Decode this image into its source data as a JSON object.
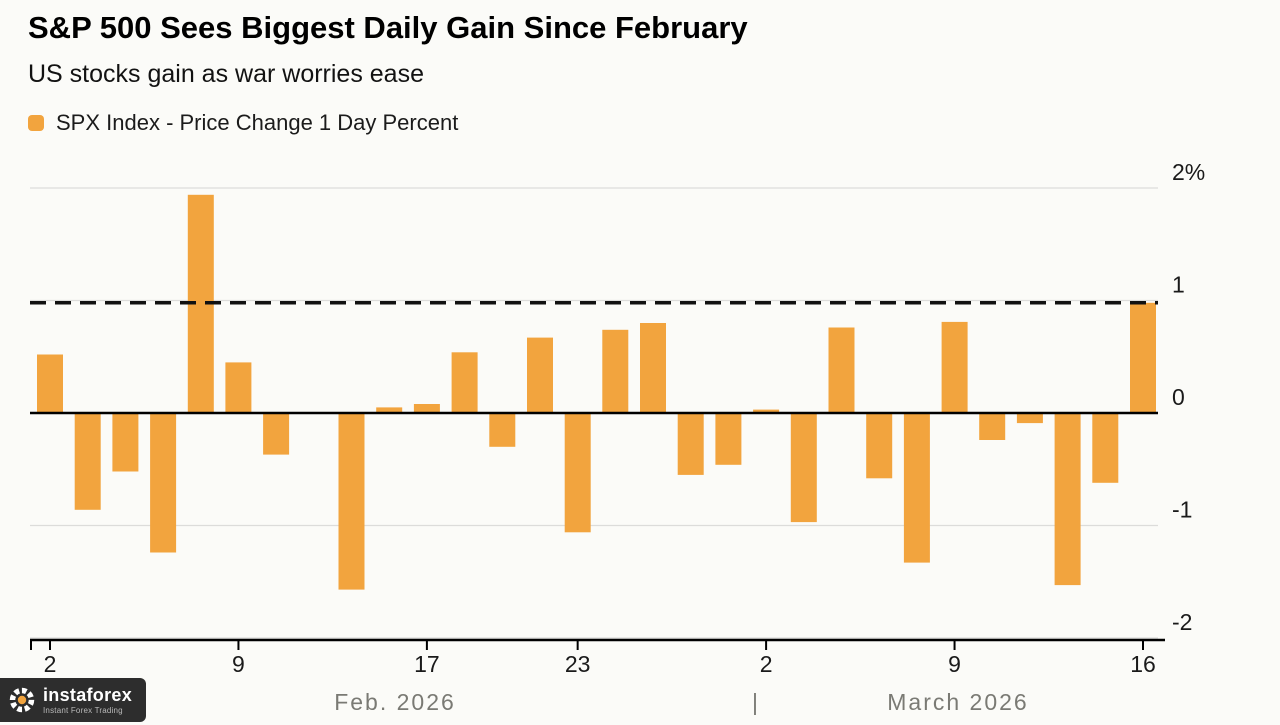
{
  "chart_data": {
    "type": "bar",
    "title": "S&P 500 Sees Biggest Daily Gain Since February",
    "subtitle": "US stocks gain as war worries ease",
    "legend": "SPX Index - Price Change 1 Day Percent",
    "bar_color": "#f2a43e",
    "grid": true,
    "ylim": [
      -2,
      2
    ],
    "categories": [
      "Feb 2",
      "Feb 3",
      "Feb 4",
      "Feb 5",
      "Feb 6",
      "Feb 9",
      "Feb 10",
      "Feb 11",
      "Feb 12",
      "Feb 13",
      "Feb 17",
      "Feb 18",
      "Feb 19",
      "Feb 20",
      "Feb 23",
      "Feb 24",
      "Feb 25",
      "Feb 26",
      "Feb 27",
      "Mar 2",
      "Mar 3",
      "Mar 4",
      "Mar 5",
      "Mar 6",
      "Mar 9",
      "Mar 10",
      "Mar 11",
      "Mar 12",
      "Mar 13",
      "Mar 16"
    ],
    "values": [
      0.52,
      -0.86,
      -0.52,
      -1.24,
      1.94,
      0.45,
      -0.37,
      0.0,
      -1.57,
      0.05,
      0.08,
      0.54,
      -0.3,
      0.67,
      -1.06,
      0.74,
      0.8,
      -0.55,
      -0.46,
      0.03,
      -0.97,
      0.76,
      -0.58,
      -1.33,
      0.81,
      -0.24,
      -0.09,
      -1.53,
      -0.62,
      0.98
    ],
    "reference_line": 0.98,
    "yticks": [
      {
        "label": "2%",
        "value": 2
      },
      {
        "label": "1",
        "value": 1
      },
      {
        "label": "0",
        "value": 0
      },
      {
        "label": "-1",
        "value": -1
      },
      {
        "label": "-2",
        "value": -2
      }
    ],
    "xticks": [
      {
        "label": "2",
        "index": 0
      },
      {
        "label": "9",
        "index": 5
      },
      {
        "label": "17",
        "index": 10
      },
      {
        "label": "23",
        "index": 14
      },
      {
        "label": "2",
        "index": 19
      },
      {
        "label": "9",
        "index": 24
      },
      {
        "label": "16",
        "index": 29
      }
    ],
    "month_labels": [
      "Feb. 2026",
      "March 2026"
    ],
    "month_separator": "|"
  },
  "watermark": {
    "name": "instaforex",
    "tagline": "Instant Forex Trading"
  },
  "colors": {
    "bar": "#f2a43e",
    "gridline": "#dcdcda",
    "axis": "#000000",
    "month_label": "#7a7a74",
    "tick_label": "#1a1a1a"
  }
}
